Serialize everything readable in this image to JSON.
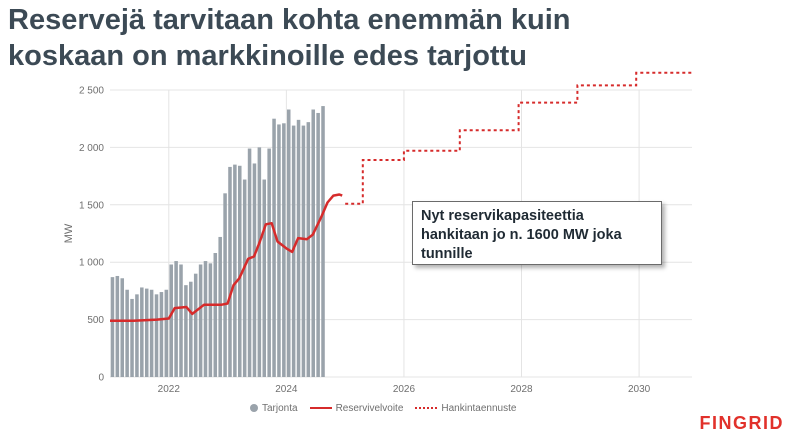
{
  "title": {
    "line1": "Reservejä tarvitaan kohta enemmän kuin",
    "line2": "koskaan on markkinoille edes tarjottu"
  },
  "callout": {
    "line1": "Nyt reservikapasiteettia",
    "line2": "hankitaan jo n. 1600 MW joka",
    "line3": "tunnille"
  },
  "logo": "FINGRID",
  "colors": {
    "bars": "#9aa3ab",
    "obligation": "#d62b2b",
    "forecast": "#d62b2b",
    "title": "#3c4a55"
  },
  "chart_data": {
    "type": "bar",
    "ylabel": "MW",
    "ylim": [
      0,
      2500
    ],
    "xlim": [
      2021.0,
      2030.9
    ],
    "yticks": [
      {
        "value": 0,
        "label": "0"
      },
      {
        "value": 500,
        "label": "500"
      },
      {
        "value": 1000,
        "label": "1 000"
      },
      {
        "value": 1500,
        "label": "1 500"
      },
      {
        "value": 2000,
        "label": "2 000"
      },
      {
        "value": 2500,
        "label": "2 500"
      }
    ],
    "xticks": [
      {
        "value": 2022,
        "label": "2022"
      },
      {
        "value": 2024,
        "label": "2024"
      },
      {
        "value": 2026,
        "label": "2026"
      },
      {
        "value": 2028,
        "label": "2028"
      },
      {
        "value": 2030,
        "label": "2030"
      }
    ],
    "grid": true,
    "legend_position": "bottom",
    "series": [
      {
        "name": "Tarjonta",
        "type": "bar",
        "x_start": 2021.0,
        "x_step": 0.0833,
        "values": [
          870,
          880,
          860,
          760,
          680,
          720,
          780,
          770,
          760,
          720,
          740,
          760,
          980,
          1010,
          980,
          800,
          830,
          900,
          980,
          1010,
          990,
          1080,
          1220,
          1600,
          1830,
          1850,
          1840,
          1720,
          1990,
          1860,
          2000,
          1720,
          1990,
          2250,
          2200,
          2210,
          2330,
          2190,
          2240,
          2190,
          2220,
          2330,
          2300,
          2360
        ]
      },
      {
        "name": "Reservivelvoite",
        "type": "line",
        "points": [
          [
            2021.0,
            490
          ],
          [
            2021.4,
            490
          ],
          [
            2021.8,
            500
          ],
          [
            2022.0,
            510
          ],
          [
            2022.1,
            600
          ],
          [
            2022.3,
            610
          ],
          [
            2022.4,
            550
          ],
          [
            2022.6,
            630
          ],
          [
            2022.9,
            630
          ],
          [
            2023.0,
            640
          ],
          [
            2023.1,
            800
          ],
          [
            2023.2,
            860
          ],
          [
            2023.35,
            1030
          ],
          [
            2023.45,
            1050
          ],
          [
            2023.55,
            1180
          ],
          [
            2023.65,
            1330
          ],
          [
            2023.75,
            1340
          ],
          [
            2023.85,
            1180
          ],
          [
            2024.0,
            1120
          ],
          [
            2024.1,
            1090
          ],
          [
            2024.2,
            1210
          ],
          [
            2024.35,
            1200
          ],
          [
            2024.45,
            1240
          ],
          [
            2024.6,
            1400
          ],
          [
            2024.7,
            1520
          ],
          [
            2024.8,
            1580
          ],
          [
            2024.9,
            1590
          ],
          [
            2024.95,
            1580
          ]
        ]
      },
      {
        "name": "Hankintaennuste",
        "type": "step",
        "dashed": true,
        "points": [
          [
            2025.0,
            1510
          ],
          [
            2025.3,
            1510
          ],
          [
            2025.3,
            1890
          ],
          [
            2026.0,
            1890
          ],
          [
            2026.0,
            1970
          ],
          [
            2026.95,
            1970
          ],
          [
            2026.95,
            2150
          ],
          [
            2027.95,
            2150
          ],
          [
            2027.95,
            2390
          ],
          [
            2028.95,
            2390
          ],
          [
            2028.95,
            2540
          ],
          [
            2029.95,
            2540
          ],
          [
            2029.95,
            2650
          ],
          [
            2030.9,
            2650
          ]
        ]
      }
    ]
  }
}
